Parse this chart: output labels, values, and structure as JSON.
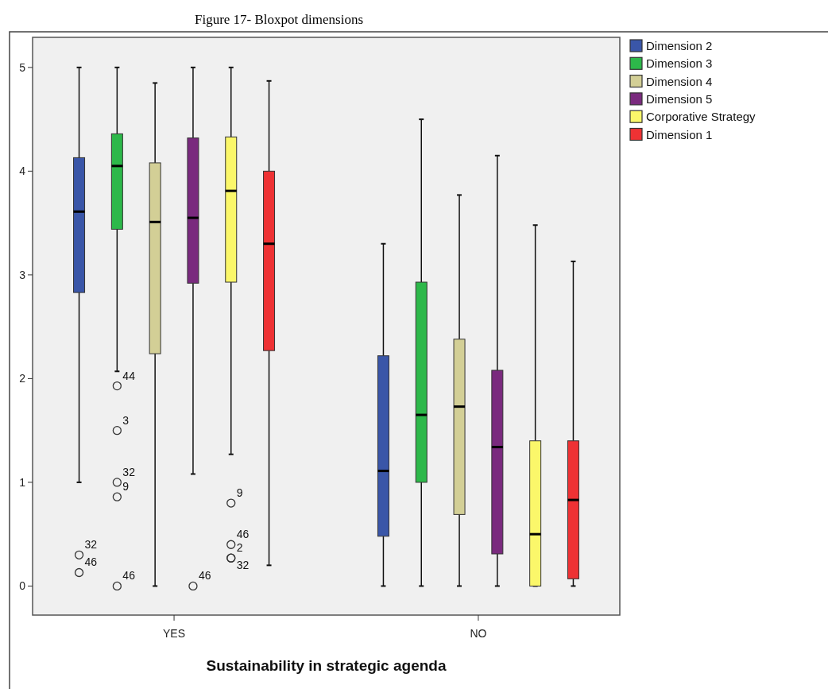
{
  "chart_data": {
    "type": "box",
    "title": "Figure 17- Bloxpot dimensions",
    "xlabel": "Sustainability in strategic agenda",
    "categories": [
      "YES",
      "NO"
    ],
    "ylim": [
      -0.28,
      5.29
    ],
    "yticks": [
      0,
      1,
      2,
      3,
      4,
      5
    ],
    "grid": false,
    "legend": "top right",
    "marker": "circle",
    "series": [
      {
        "name": "Dimension 2",
        "color": "#3a56a8",
        "boxes": [
          {
            "low": 1.0,
            "q1": 2.83,
            "median": 3.61,
            "q3": 4.13,
            "high": 5,
            "outliers": [
              0.3,
              0.13
            ]
          },
          {
            "low": 0,
            "q1": 0.48,
            "median": 1.11,
            "q3": 2.22,
            "high": 3.3
          }
        ]
      },
      {
        "name": "Dimension 3",
        "color": "#2db84a",
        "boxes": [
          {
            "low": 2.07,
            "q1": 3.44,
            "median": 4.05,
            "q3": 4.36,
            "high": 5,
            "outliers": [
              1.93,
              1.5,
              1.0,
              0.86,
              0
            ]
          },
          {
            "low": 0,
            "q1": 1.0,
            "median": 1.65,
            "q3": 2.93,
            "high": 4.5
          }
        ]
      },
      {
        "name": "Dimension 4",
        "color": "#d3cf96",
        "boxes": [
          {
            "low": 0,
            "q1": 2.24,
            "median": 3.51,
            "q3": 4.08,
            "high": 4.85
          },
          {
            "low": 0,
            "q1": 0.69,
            "median": 1.73,
            "q3": 2.38,
            "high": 3.77
          }
        ]
      },
      {
        "name": "Dimension 5",
        "color": "#7a2a7e",
        "boxes": [
          {
            "low": 1.08,
            "q1": 2.92,
            "median": 3.55,
            "q3": 4.32,
            "high": 5,
            "outliers": [
              0
            ]
          },
          {
            "low": 0,
            "q1": 0.31,
            "median": 1.34,
            "q3": 2.08,
            "high": 4.15
          }
        ]
      },
      {
        "name": "Corporative Strategy",
        "color": "#fbf76a",
        "boxes": [
          {
            "low": 1.27,
            "q1": 2.93,
            "median": 3.81,
            "q3": 4.33,
            "high": 5,
            "outliers": [
              0.8,
              0.4,
              0.27,
              0.27
            ]
          },
          {
            "low": 0,
            "q1": 0,
            "median": 0.5,
            "q3": 1.4,
            "high": 3.48
          }
        ]
      },
      {
        "name": "Dimension 1",
        "color": "#ee3234",
        "boxes": [
          {
            "low": 0.2,
            "q1": 2.27,
            "median": 3.3,
            "q3": 4.0,
            "high": 4.87
          },
          {
            "low": 0,
            "q1": 0.07,
            "median": 0.83,
            "q3": 1.4,
            "high": 3.13
          }
        ]
      }
    ],
    "annotations": [
      "32",
      "46",
      "44",
      "3",
      "32",
      "9",
      "46",
      "46",
      "9",
      "46",
      "2",
      "32"
    ]
  }
}
